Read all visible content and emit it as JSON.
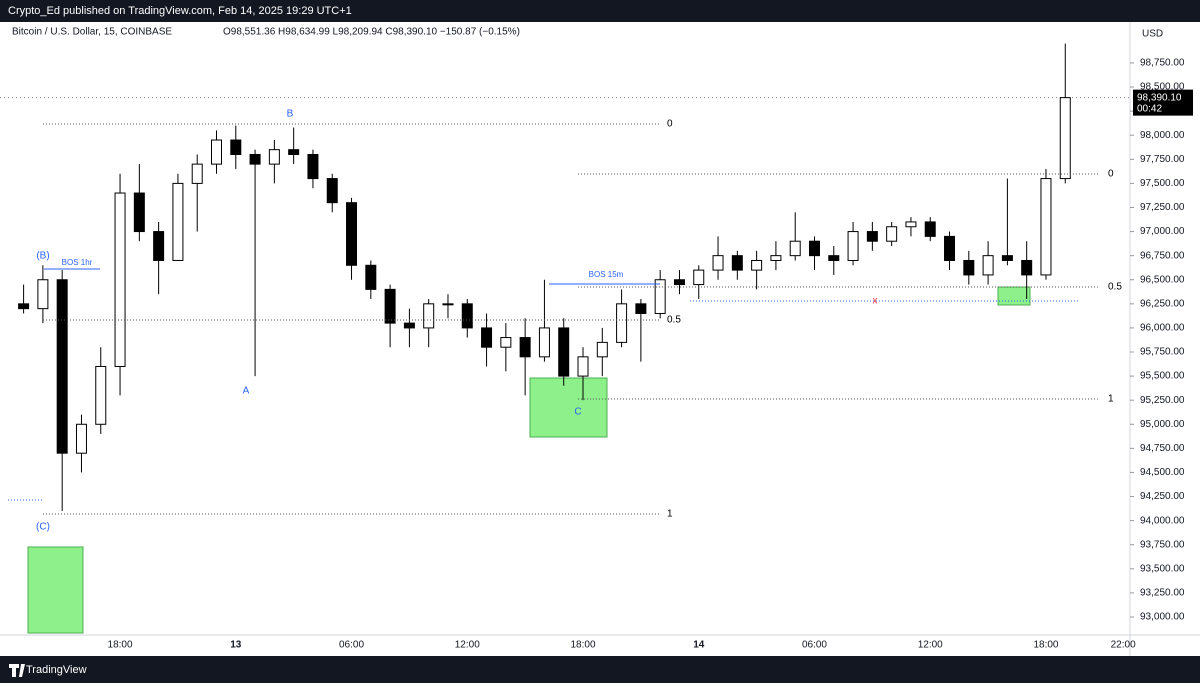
{
  "header": {
    "publisher": "Crypto_Ed published on TradingView.com, Feb 14, 2025 19:29 UTC+1",
    "symbol": "Bitcoin / U.S. Dollar, 15, COINBASE",
    "ohlc": "O98,551.36  H98,634.99  L98,209.94  C98,390.10  −150.87 (−0.15%)"
  },
  "chart_data": {
    "type": "candlestick",
    "categories": [
      null,
      null,
      null,
      null,
      null,
      "18:00",
      null,
      null,
      null,
      null,
      null,
      "13",
      null,
      null,
      null,
      null,
      null,
      "06:00",
      null,
      null,
      null,
      null,
      null,
      "12:00",
      null,
      null,
      null,
      null,
      null,
      "18:00",
      null,
      null,
      null,
      null,
      null,
      "14",
      null,
      null,
      null,
      null,
      null,
      "06:00",
      null,
      null,
      null,
      null,
      null,
      "12:00",
      null,
      null,
      null,
      null,
      null,
      "18:00",
      null,
      null,
      null,
      "22:00"
    ],
    "open": [
      96250,
      96200,
      96500,
      94700,
      95000,
      95600,
      97400,
      97000,
      96700,
      97500,
      97700,
      97950,
      97800,
      97700,
      97850,
      97800,
      97550,
      97300,
      96650,
      96400,
      96050,
      96000,
      96250,
      96250,
      96000,
      95800,
      95900,
      95700,
      96000,
      95500,
      95700,
      95850,
      96250,
      96150,
      96500,
      96450,
      96600,
      96750,
      96600,
      96700,
      96750,
      96900,
      96750,
      96700,
      97000,
      96900,
      97050,
      97100,
      96950,
      96700,
      96550,
      96750,
      96700,
      96550,
      97550,
      null,
      null,
      null
    ],
    "high": [
      96450,
      96650,
      96600,
      95100,
      95800,
      97600,
      97700,
      97100,
      97600,
      97800,
      98050,
      98100,
      97850,
      97950,
      98080,
      97850,
      97600,
      97350,
      96700,
      96450,
      96200,
      96300,
      96350,
      96300,
      96150,
      96050,
      96100,
      96500,
      96100,
      95800,
      96000,
      96400,
      96300,
      96600,
      96600,
      96650,
      96950,
      96800,
      96800,
      96900,
      97200,
      96950,
      96850,
      97100,
      97100,
      97100,
      97150,
      97150,
      97000,
      96800,
      96900,
      97550,
      96900,
      97650,
      98950,
      null,
      null,
      null
    ],
    "low": [
      96150,
      96050,
      94100,
      94500,
      94900,
      95300,
      96900,
      96350,
      96700,
      97000,
      97600,
      97650,
      95500,
      97500,
      97700,
      97450,
      97200,
      96500,
      96300,
      95800,
      95800,
      95800,
      96100,
      95900,
      95600,
      95550,
      95300,
      95650,
      95400,
      95250,
      95500,
      95800,
      95650,
      96100,
      96350,
      96300,
      96500,
      96500,
      96400,
      96600,
      96700,
      96600,
      96550,
      96650,
      96800,
      96850,
      96950,
      96900,
      96600,
      96450,
      96450,
      96650,
      96300,
      96500,
      97500,
      null,
      null,
      null
    ],
    "close": [
      96200,
      96500,
      94700,
      95000,
      95600,
      97400,
      97000,
      96700,
      97500,
      97700,
      97950,
      97800,
      97700,
      97850,
      97800,
      97550,
      97300,
      96650,
      96400,
      96050,
      96000,
      96250,
      96250,
      96000,
      95800,
      95900,
      95700,
      96000,
      95500,
      95700,
      95850,
      96250,
      96150,
      96500,
      96450,
      96600,
      96750,
      96600,
      96700,
      96750,
      96900,
      96750,
      96700,
      97000,
      96900,
      97050,
      97100,
      96950,
      96700,
      96550,
      96750,
      96700,
      96550,
      97550,
      98390.1,
      null,
      null,
      null
    ],
    "up_color": "#ffffff",
    "down_color": "#000000",
    "ylim": [
      92813,
      99175
    ],
    "yticks": [
      {
        "value": 93000,
        "label": "93,000.00"
      },
      {
        "value": 93250,
        "label": "93,250.00"
      },
      {
        "value": 93500,
        "label": "93,500.00"
      },
      {
        "value": 93750,
        "label": "93,750.00"
      },
      {
        "value": 94000,
        "label": "94,000.00"
      },
      {
        "value": 94250,
        "label": "94,250.00"
      },
      {
        "value": 94500,
        "label": "94,500.00"
      },
      {
        "value": 94750,
        "label": "94,750.00"
      },
      {
        "value": 95000,
        "label": "95,000.00"
      },
      {
        "value": 95250,
        "label": "95,250.00"
      },
      {
        "value": 95500,
        "label": "95,500.00"
      },
      {
        "value": 95750,
        "label": "95,750.00"
      },
      {
        "value": 96000,
        "label": "96,000.00"
      },
      {
        "value": 96250,
        "label": "96,250.00"
      },
      {
        "value": 96500,
        "label": "96,500.00"
      },
      {
        "value": 96750,
        "label": "96,750.00"
      },
      {
        "value": 97000,
        "label": "97,000.00"
      },
      {
        "value": 97250,
        "label": "97,250.00"
      },
      {
        "value": 97500,
        "label": "97,500.00"
      },
      {
        "value": 97750,
        "label": "97,750.00"
      },
      {
        "value": 98000,
        "label": "98,000.00"
      },
      {
        "value": 98250,
        "label": "98,250.00"
      },
      {
        "value": 98500,
        "label": "98,500.00"
      },
      {
        "value": 98750,
        "label": "98,750.00"
      }
    ],
    "unit": "USD",
    "last_price": {
      "value": 98390.1,
      "label": "98,390.10"
    },
    "countdown": "00:42",
    "annotations": {
      "fib1": [
        "0",
        "0.5",
        "1"
      ],
      "fib2": [
        "0",
        "0.5",
        "1"
      ],
      "waves": [
        "(B)",
        "(C)",
        "A",
        "B",
        "C"
      ],
      "bos": [
        "BOS 1hr",
        "BOS 15m"
      ],
      "invalidation": "x"
    }
  },
  "footer": "TradingView"
}
